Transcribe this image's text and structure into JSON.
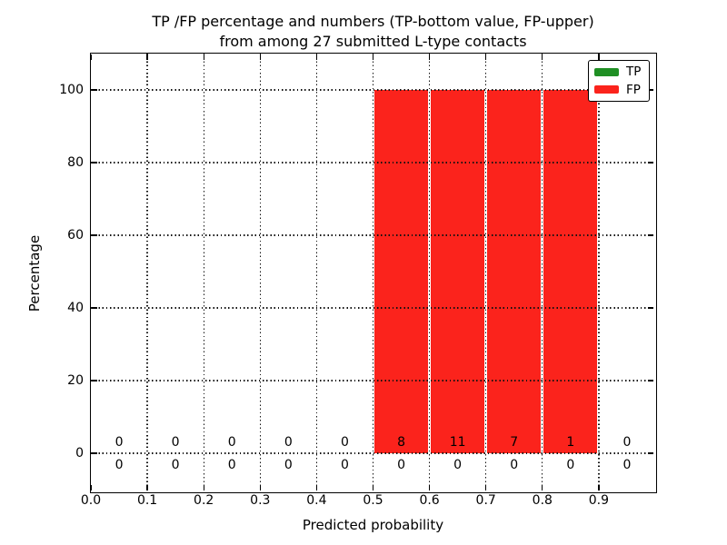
{
  "chart_data": {
    "type": "bar",
    "stacked": true,
    "title_line1": "TP /FP percentage and numbers (TP-bottom value, FP-upper)",
    "title_line2": "from among 27 submitted L-type contacts",
    "xlabel": "Predicted probability",
    "ylabel": "Percentage",
    "xlim": [
      0.0,
      1.0
    ],
    "ylim": [
      -11,
      110
    ],
    "xticks": [
      "0.0",
      "0.1",
      "0.2",
      "0.3",
      "0.4",
      "0.5",
      "0.6",
      "0.7",
      "0.8",
      "0.9"
    ],
    "yticks": [
      0,
      20,
      40,
      60,
      80,
      100
    ],
    "bin_edges": [
      0.0,
      0.1,
      0.2,
      0.3,
      0.4,
      0.5,
      0.6,
      0.7,
      0.8,
      0.9,
      1.0
    ],
    "grid": "dotted",
    "total_contacts": 27,
    "legend": {
      "position": "upper right",
      "entries": [
        "TP",
        "FP"
      ]
    },
    "series": [
      {
        "name": "TP",
        "color": "#1f8f24",
        "percent": [
          0,
          0,
          0,
          0,
          0,
          0,
          0,
          0,
          0,
          0
        ],
        "counts": [
          0,
          0,
          0,
          0,
          0,
          0,
          0,
          0,
          0,
          0
        ],
        "label_row": "bottom"
      },
      {
        "name": "FP",
        "color": "#fb231c",
        "percent": [
          0,
          0,
          0,
          0,
          0,
          100,
          100,
          100,
          100,
          0
        ],
        "counts": [
          0,
          0,
          0,
          0,
          0,
          8,
          11,
          7,
          1,
          0
        ],
        "label_row": "top"
      }
    ]
  }
}
